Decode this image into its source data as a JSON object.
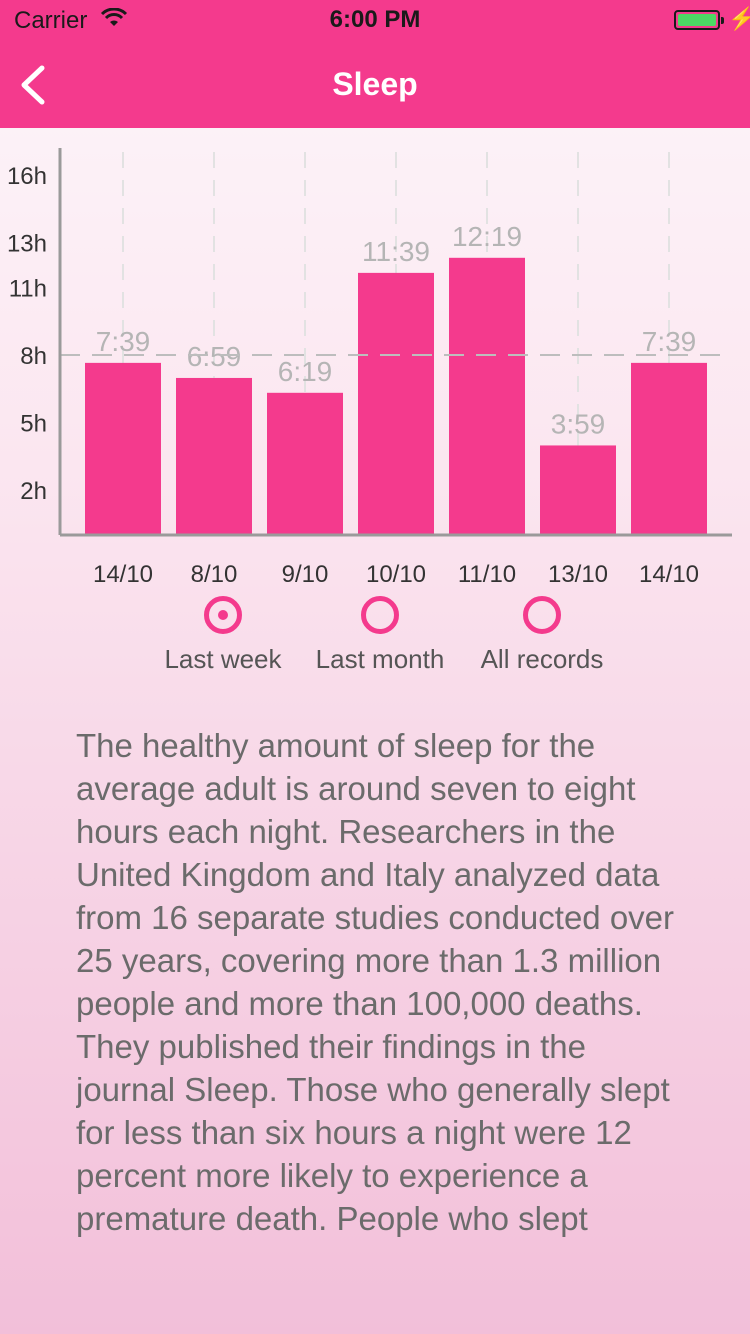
{
  "status_bar": {
    "carrier": "Carrier",
    "time": "6:00 PM",
    "wifi_icon": "wifi-icon",
    "battery_icon": "battery-icon",
    "charging_icon": "charging-bolt-icon",
    "battery_color": "#4cd964"
  },
  "nav": {
    "title": "Sleep",
    "back_icon": "chevron-left-icon",
    "bar_color": "#f43a8d"
  },
  "chart_data": {
    "type": "bar",
    "categories": [
      "14/10",
      "8/10",
      "9/10",
      "10/10",
      "11/10",
      "13/10",
      "14/10"
    ],
    "values": [
      7.65,
      6.98,
      6.32,
      11.65,
      12.32,
      3.98,
      7.65
    ],
    "value_labels": [
      "7:39",
      "6:59",
      "6:19",
      "11:39",
      "12:19",
      "3:59",
      "7:39"
    ],
    "y_ticks": [
      "16h",
      "13h",
      "11h",
      "8h",
      "5h",
      "2h"
    ],
    "y_tick_values": [
      16,
      13,
      11,
      8,
      5,
      2
    ],
    "ylim": [
      0,
      17.2
    ],
    "reference_line": 8,
    "bar_color": "#f43a8d",
    "grid": "vertical dashed"
  },
  "filters": {
    "options": [
      "Last week",
      "Last month",
      "All records"
    ],
    "selected": "Last week"
  },
  "article": {
    "text": "The healthy amount of sleep for the average adult is around seven to eight hours each night.  Researchers in the United Kingdom and Italy analyzed data from 16 separate studies conducted over 25 years, covering more than 1.3 million people and more than 100,000 deaths. They published their findings in the journal Sleep. Those who generally slept for less than six hours a night were 12 percent more likely to experience a premature death. People who slept"
  }
}
